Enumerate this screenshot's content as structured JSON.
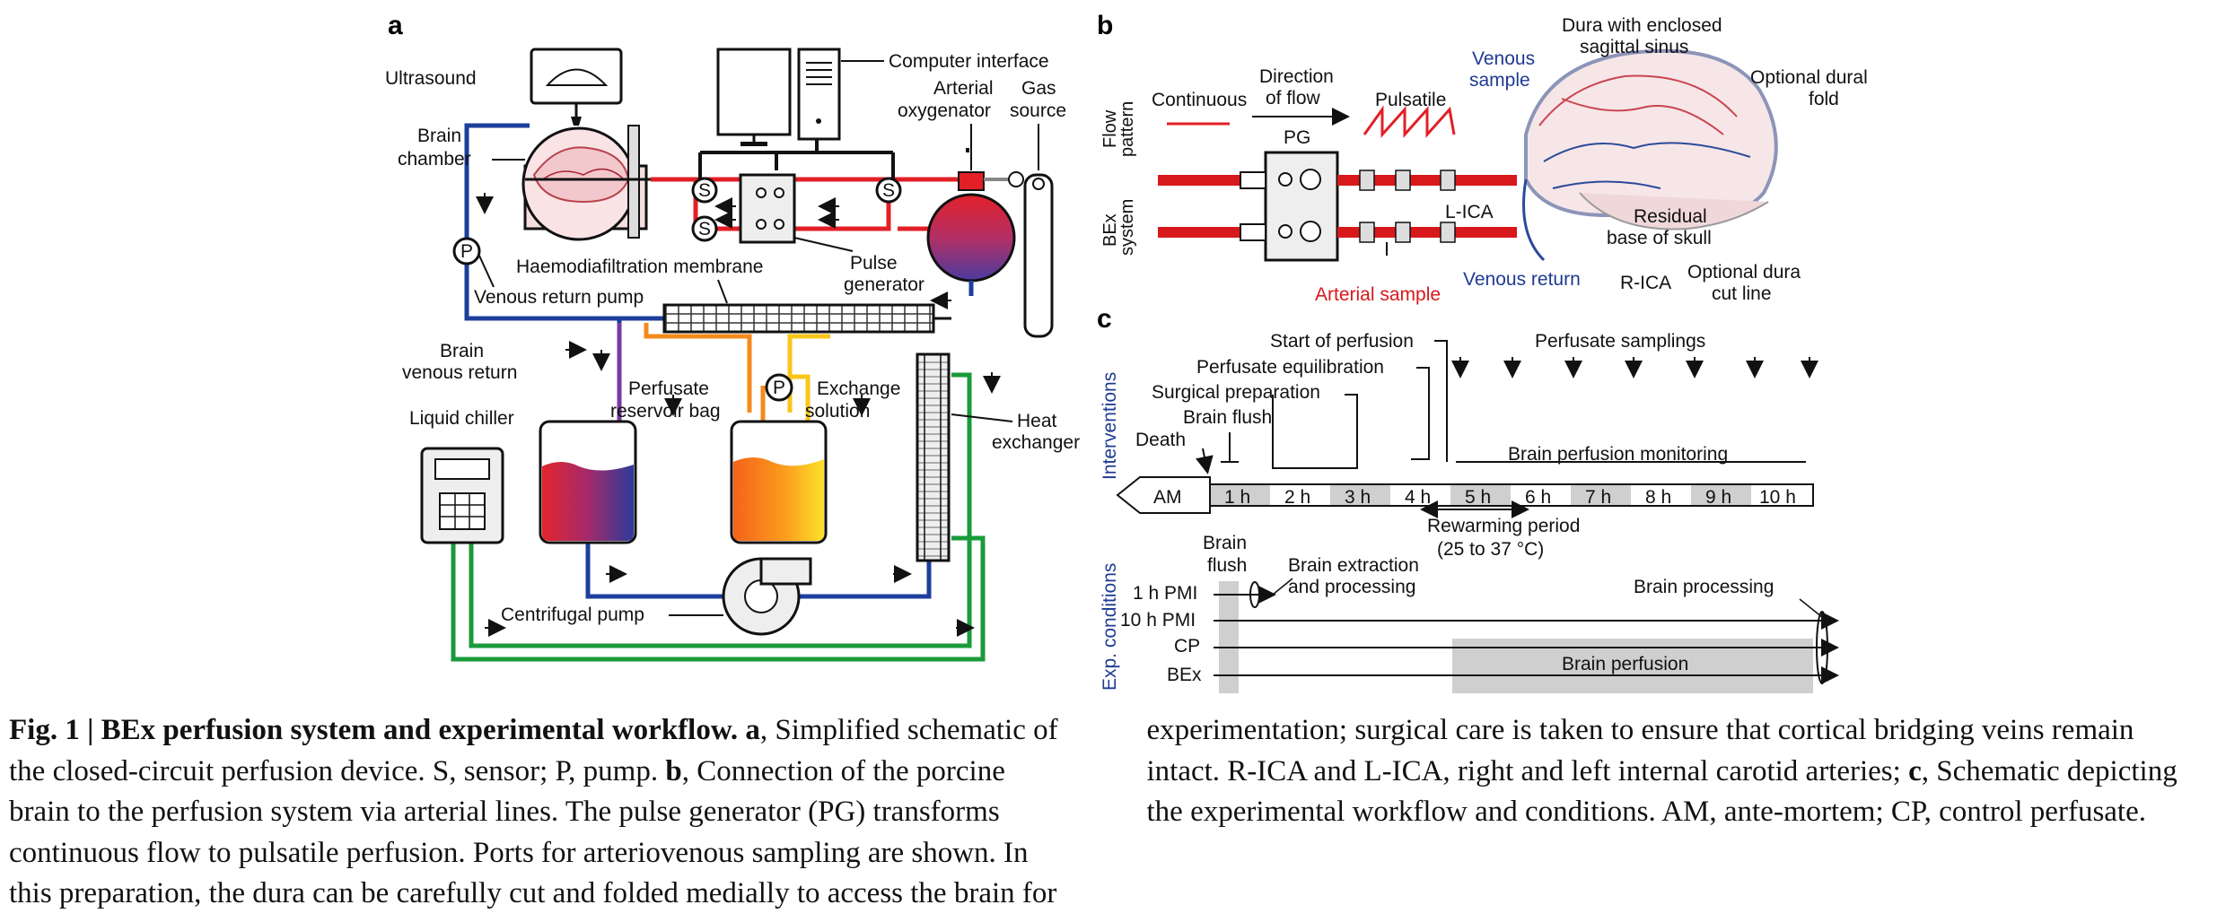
{
  "panel_a": {
    "letter": "a",
    "labels": {
      "ultrasound": "Ultrasound",
      "computer": "Computer interface",
      "brain_chamber_1": "Brain",
      "brain_chamber_2": "chamber",
      "oxygenator_1": "Arterial",
      "oxygenator_2": "oxygenator",
      "gas_1": "Gas",
      "gas_2": "source",
      "hdf": "Haemodiafiltration membrane",
      "pulse_1": "Pulse",
      "pulse_2": "generator",
      "venous_pump": "Venous return pump",
      "venous_return_1": "Brain",
      "venous_return_2": "venous return",
      "reservoir_1": "Perfusate",
      "reservoir_2": "reservoir bag",
      "exchange_1": "Exchange",
      "exchange_2": "solution",
      "heat_1": "Heat",
      "heat_2": "exchanger",
      "chiller": "Liquid chiller",
      "centrifugal": "Centrifugal pump",
      "sensor": "S",
      "pump": "P"
    }
  },
  "panel_b": {
    "letter": "b",
    "labels": {
      "flow_1": "Flow",
      "flow_2": "pattern",
      "continuous": "Continuous",
      "direction_1": "Direction",
      "direction_2": "of flow",
      "pulsatile": "Pulsatile",
      "pg": "PG",
      "system_1": "BEx",
      "system_2": "system",
      "venous_sample_1": "Venous",
      "venous_sample_2": "sample",
      "dura_1": "Dura with enclosed",
      "dura_2": "sagittal sinus",
      "dural_fold_1": "Optional dural",
      "dural_fold_2": "fold",
      "l_ica": "L-ICA",
      "residual_1": "Residual",
      "residual_2": "base of skull",
      "venous_return": "Venous return",
      "r_ica": "R-ICA",
      "cut_1": "Optional dura",
      "cut_2": "cut line",
      "arterial_sample": "Arterial sample"
    }
  },
  "panel_c": {
    "letter": "c",
    "interventions_axis": "Interventions",
    "conditions_axis": "Exp. conditions",
    "start_perfusion": "Start of perfusion",
    "equilibration": "Perfusate equilibration",
    "surgical": "Surgical preparation",
    "brain_flush": "Brain flush",
    "death": "Death",
    "samplings": "Perfusate samplings",
    "monitoring": "Brain perfusion monitoring",
    "timeline": [
      "AM",
      "1 h",
      "2 h",
      "3 h",
      "4 h",
      "5 h",
      "6 h",
      "7 h",
      "8 h",
      "9 h",
      "10 h"
    ],
    "rewarming_1": "Rewarming period",
    "rewarming_2": "(25 to 37 °C)",
    "flush_1": "Brain",
    "flush_2": "flush",
    "extraction_1": "Brain extraction",
    "extraction_2": "and processing",
    "processing": "Brain processing",
    "conditions": [
      "1 h PMI",
      "10 h PMI",
      "CP",
      "BEx"
    ],
    "perfusion": "Brain perfusion"
  },
  "caption": {
    "title": "Fig. 1 | BEx perfusion system and experimental workflow.",
    "a_letter": "a",
    "a_text": ", Simplified schematic of the closed-circuit perfusion device. S, sensor; P, pump.",
    "b_letter": "b",
    "b_text": ", Connection of the porcine brain to the perfusion system via arterial lines. The pulse generator (PG) transforms continuous flow to pulsatile perfusion. Ports for arteriovenous sampling are shown. In this preparation, the dura can be carefully cut and folded medially to access the brain for experimentation; surgical care is taken to ensure that cortical bridging veins remain intact. R-ICA and L-ICA, right and left internal carotid arteries;",
    "c_letter": "c",
    "c_text": ", Schematic depicting the experimental workflow and conditions. AM, ante-mortem; CP, control perfusate."
  }
}
